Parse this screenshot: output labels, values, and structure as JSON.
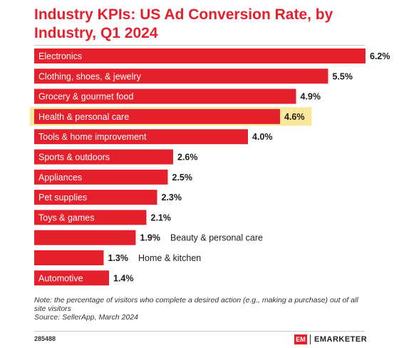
{
  "page": {
    "title": "Industry KPIs: US Ad Conversion Rate, by Industry, Q1 2024",
    "note": "Note: the percentage of visitors who complete a desired action (e.g., making a purchase) out of all site visitors",
    "source": "Source: SellerApp, March 2024",
    "chart_id": "285488",
    "brand_name": "EMARKETER",
    "brand_mark": "EM"
  },
  "colors": {
    "bar": "#e4202c",
    "highlight_bg": "#fbe79a",
    "text": "#1a1a1a",
    "title": "#e4202c"
  },
  "chart_data": {
    "type": "bar",
    "orientation": "horizontal",
    "highlighted_category": "Health & personal care",
    "categories": [
      "Electronics",
      "Clothing, shoes, & jewelry",
      "Grocery & gourmet food",
      "Health & personal care",
      "Tools & home improvement",
      "Sports & outdoors",
      "Appliances",
      "Pet supplies",
      "Toys & games",
      "Beauty & personal care",
      "Home & kitchen",
      "Automotive"
    ],
    "values": [
      6.2,
      5.5,
      4.9,
      4.6,
      4.0,
      2.6,
      2.5,
      2.3,
      2.1,
      1.9,
      1.3,
      1.4
    ],
    "value_labels": [
      "6.2%",
      "5.5%",
      "4.9%",
      "4.6%",
      "4.0%",
      "2.6%",
      "2.5%",
      "2.3%",
      "2.1%",
      "1.9%",
      "1.3%",
      "1.4%"
    ],
    "xlim": [
      0,
      6.2
    ],
    "title": "Industry KPIs: US Ad Conversion Rate, by Industry, Q1 2024",
    "xlabel": "",
    "ylabel": "",
    "grid": false,
    "legend": "none"
  }
}
